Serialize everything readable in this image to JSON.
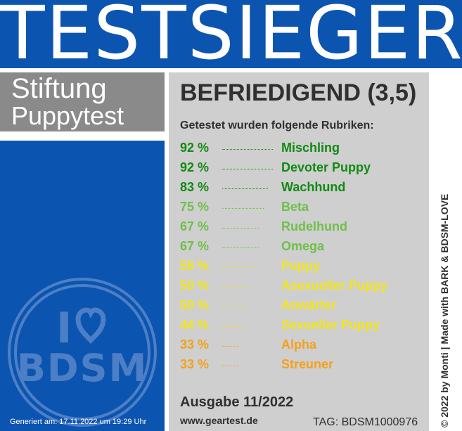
{
  "banner": {
    "title": "TESTSIEGER"
  },
  "organization": {
    "line1": "Stiftung",
    "line2": "Puppytest"
  },
  "result": {
    "verdict": "BEFRIEDIGEND (3,5)",
    "subtitle": "Getestet wurden folgende Rubriken:",
    "categories": [
      {
        "percent": "92 %",
        "name": "Mischling",
        "value": 92,
        "color": "#128a12"
      },
      {
        "percent": "92 %",
        "name": "Devoter Puppy",
        "value": 92,
        "color": "#128a12"
      },
      {
        "percent": "83 %",
        "name": "Wachhund",
        "value": 83,
        "color": "#128a12"
      },
      {
        "percent": "75 %",
        "name": "Beta",
        "value": 75,
        "color": "#6fc04a"
      },
      {
        "percent": "67 %",
        "name": "Rudelhund",
        "value": 67,
        "color": "#6fc04a"
      },
      {
        "percent": "67 %",
        "name": "Omega",
        "value": 67,
        "color": "#6fc04a"
      },
      {
        "percent": "58 %",
        "name": "Puppy",
        "value": 58,
        "color": "#f2e61a"
      },
      {
        "percent": "50 %",
        "name": "Asexueller Puppy",
        "value": 50,
        "color": "#f2e61a"
      },
      {
        "percent": "50 %",
        "name": "Anwärter",
        "value": 50,
        "color": "#f2e61a"
      },
      {
        "percent": "44 %",
        "name": "Sexueller Puppy",
        "value": 44,
        "color": "#f2e61a"
      },
      {
        "percent": "33 %",
        "name": "Alpha",
        "value": 33,
        "color": "#f3a11e"
      },
      {
        "percent": "33 %",
        "name": "Streuner",
        "value": 33,
        "color": "#f3a11e"
      }
    ],
    "issue": "Ausgabe 11/2022",
    "website": "www.geartest.de",
    "tag": "TAG: BDSM1000976"
  },
  "copyright": "© 2022 by Monti | Made with BARK & BDSM-LOVE",
  "generated": "Generiert am: 17.11.2022 um 19:29 Uhr",
  "logo": {
    "icon": "heart-icon",
    "text_i": "I",
    "text_bdsm": "BDSM"
  },
  "colors": {
    "blue": "#0b55b0",
    "gray_box": "#8a8a8a",
    "card": "#cfcfcf",
    "text": "#303030"
  }
}
